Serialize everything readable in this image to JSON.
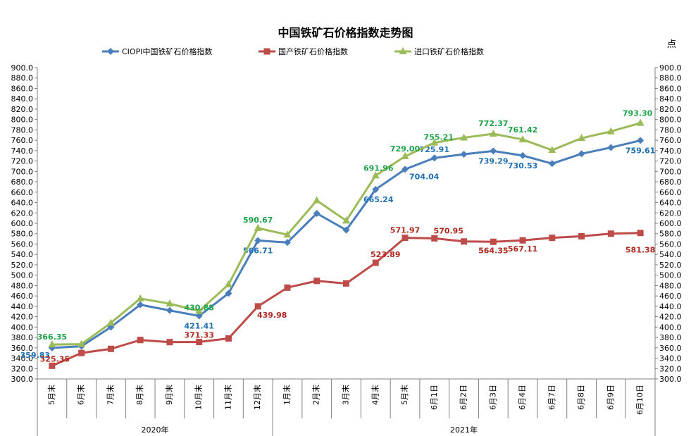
{
  "chart_data": {
    "type": "line",
    "title": "中国铁矿石价格指数走势图",
    "unit_label": "点",
    "ylim": [
      300,
      900
    ],
    "ytick_step": 20,
    "ytick_labels": [
      "300.0",
      "320.0",
      "340.0",
      "360.0",
      "380.0",
      "400.0",
      "420.0",
      "440.0",
      "460.0",
      "480.0",
      "500.0",
      "520.0",
      "540.0",
      "560.0",
      "580.0",
      "600.0",
      "620.0",
      "640.0",
      "660.0",
      "680.0",
      "700.0",
      "720.0",
      "740.0",
      "760.0",
      "780.0",
      "800.0",
      "820.0",
      "840.0",
      "860.0",
      "880.0",
      "900.0"
    ],
    "categories": [
      "5月末",
      "6月末",
      "7月末",
      "8月末",
      "9月末",
      "10月末",
      "11月末",
      "12月末",
      "1月末",
      "2月末",
      "3月末",
      "4月末",
      "5月末",
      "6月1日",
      "6月2日",
      "6月3日",
      "6月4日",
      "6月7日",
      "6月8日",
      "6月9日",
      "6月10日"
    ],
    "year_groups": [
      {
        "label": "2020年",
        "start": 0,
        "end": 7
      },
      {
        "label": "2021年",
        "start": 8,
        "end": 20
      }
    ],
    "grid": false,
    "legend_position": "top",
    "series": [
      {
        "name": "CIOPI中国铁矿石价格指数",
        "color": "#4a7ebb",
        "label_color": "#1f6fb5",
        "marker": "diamond",
        "values": [
          359.83,
          363,
          400,
          443,
          432,
          421.41,
          465,
          566.71,
          563,
          619,
          587,
          665.24,
          704.04,
          725.91,
          733,
          739.29,
          730.53,
          715,
          734,
          746,
          759.61
        ],
        "labels": {
          "0": "359.83",
          "5": "421.41",
          "7": "566.71",
          "11": "665.24",
          "12": "704.04",
          "13": "725.91",
          "15": "739.29",
          "16": "730.53",
          "20": "759.61"
        }
      },
      {
        "name": "国产铁矿石价格指数",
        "color": "#be4b48",
        "label_color": "#b0291f",
        "marker": "square",
        "values": [
          325.35,
          350,
          358,
          375,
          371,
          371.33,
          378,
          439.98,
          476,
          489,
          484,
          523.89,
          571.97,
          570.95,
          565,
          564.35,
          567.11,
          572,
          575,
          580,
          581.38
        ],
        "labels": {
          "0": "325.35",
          "5": "371.33",
          "7": "439.98",
          "11": "523.89",
          "12": "571.97",
          "13": "570.95",
          "15": "564.35",
          "16": "567.11",
          "20": "581.38"
        }
      },
      {
        "name": "进口铁矿石价格指数",
        "color": "#9bbb59",
        "label_color": "#1fa34a",
        "marker": "triangle",
        "values": [
          366.35,
          367,
          408,
          455,
          445,
          430.88,
          482,
          590.67,
          578,
          644,
          605,
          691.96,
          729.0,
          755.21,
          765,
          772.37,
          761.42,
          741,
          764,
          777,
          793.3
        ],
        "labels": {
          "0": "366.35",
          "5": "430.88",
          "7": "590.67",
          "11": "691.96",
          "12": "729.00",
          "13": "755.21",
          "15": "772.37",
          "16": "761.42",
          "20": "793.30"
        }
      }
    ]
  }
}
